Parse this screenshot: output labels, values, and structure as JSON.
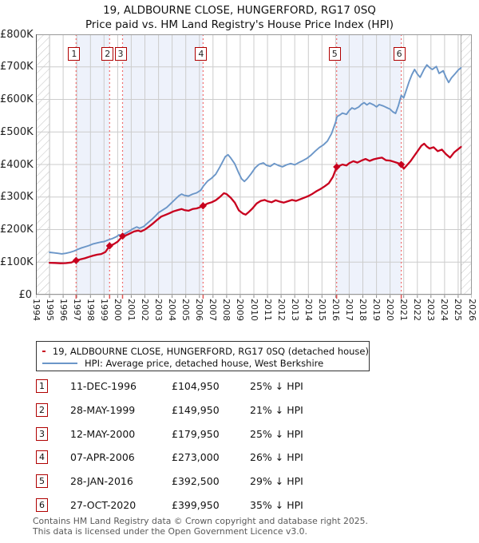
{
  "title": "19, ALDBOURNE CLOSE, HUNGERFORD, RG17 0SQ",
  "subtitle": "Price paid vs. HM Land Registry's House Price Index (HPI)",
  "legend": {
    "property_label": "19, ALDBOURNE CLOSE, HUNGERFORD, RG17 0SQ (detached house)",
    "hpi_label": "HPI: Average price, detached house, West Berkshire",
    "property_color": "#c8001e",
    "hpi_color": "#6b96c8"
  },
  "table": {
    "rows": [
      {
        "num": "1",
        "date": "11-DEC-1996",
        "price": "£104,950",
        "hpi": "25% ↓ HPI"
      },
      {
        "num": "2",
        "date": "28-MAY-1999",
        "price": "£149,950",
        "hpi": "21% ↓ HPI"
      },
      {
        "num": "3",
        "date": "12-MAY-2000",
        "price": "£179,950",
        "hpi": "25% ↓ HPI"
      },
      {
        "num": "4",
        "date": "07-APR-2006",
        "price": "£273,000",
        "hpi": "26% ↓ HPI"
      },
      {
        "num": "5",
        "date": "28-JAN-2016",
        "price": "£392,500",
        "hpi": "29% ↓ HPI"
      },
      {
        "num": "6",
        "date": "27-OCT-2020",
        "price": "£399,950",
        "hpi": "35% ↓ HPI"
      }
    ]
  },
  "footer": {
    "line1": "Contains HM Land Registry data © Crown copyright and database right 2025.",
    "line2": "This data is licensed under the Open Government Licence v3.0."
  },
  "chart_data": {
    "type": "line",
    "title": "19, ALDBOURNE CLOSE, HUNGERFORD, RG17 0SQ — Price paid vs. HPI",
    "x_range": [
      1994,
      2026
    ],
    "y_range": [
      0,
      800000
    ],
    "x_ticks": [
      1994,
      1995,
      1996,
      1997,
      1998,
      1999,
      2000,
      2001,
      2002,
      2003,
      2004,
      2005,
      2006,
      2007,
      2008,
      2009,
      2010,
      2011,
      2012,
      2013,
      2014,
      2015,
      2016,
      2017,
      2018,
      2019,
      2020,
      2021,
      2022,
      2023,
      2024,
      2025,
      2026
    ],
    "y_ticks": [
      0,
      100000,
      200000,
      300000,
      400000,
      500000,
      600000,
      700000,
      800000
    ],
    "y_tick_labels": [
      "£0",
      "£100K",
      "£200K",
      "£300K",
      "£400K",
      "£500K",
      "£600K",
      "£700K",
      "£800K"
    ],
    "grid": true,
    "legend_position": "below",
    "colors": {
      "band": "#eef2fb",
      "grid": "#cccccc",
      "border": "#999999",
      "sale_line": "#f26d6d",
      "hatch": "#c6c6c6"
    },
    "bands_between_sales": [
      [
        1996.95,
        1999.41
      ],
      [
        2000.36,
        2006.27
      ],
      [
        2016.08,
        2020.82
      ]
    ],
    "hatch_regions": [
      [
        1994,
        1995.0
      ],
      [
        2025.2,
        2026
      ]
    ],
    "sales": [
      {
        "n": 1,
        "year": 1996.95,
        "price": 104950,
        "date": "11-DEC-1996",
        "pct_vs_hpi": "25% below"
      },
      {
        "n": 2,
        "year": 1999.41,
        "price": 149950,
        "date": "28-MAY-1999",
        "pct_vs_hpi": "21% below"
      },
      {
        "n": 3,
        "year": 2000.36,
        "price": 179950,
        "date": "12-MAY-2000",
        "pct_vs_hpi": "25% below"
      },
      {
        "n": 4,
        "year": 2006.27,
        "price": 273000,
        "date": "07-APR-2006",
        "pct_vs_hpi": "26% below"
      },
      {
        "n": 5,
        "year": 2016.08,
        "price": 392500,
        "date": "28-JAN-2016",
        "pct_vs_hpi": "29% below"
      },
      {
        "n": 6,
        "year": 2020.82,
        "price": 399950,
        "date": "27-OCT-2020",
        "pct_vs_hpi": "35% below"
      }
    ],
    "series": [
      {
        "name": "HPI: Average price, detached house, West Berkshire",
        "color": "#6b96c8",
        "width": 1.9,
        "points": [
          [
            1995.0,
            130000
          ],
          [
            1995.3,
            128500
          ],
          [
            1995.6,
            127000
          ],
          [
            1995.9,
            125500
          ],
          [
            1996.2,
            127000
          ],
          [
            1996.5,
            130000
          ],
          [
            1996.8,
            134000
          ],
          [
            1997.0,
            138000
          ],
          [
            1997.3,
            143000
          ],
          [
            1997.6,
            147000
          ],
          [
            1997.9,
            151000
          ],
          [
            1998.2,
            156000
          ],
          [
            1998.5,
            159000
          ],
          [
            1998.8,
            162000
          ],
          [
            1999.0,
            163000
          ],
          [
            1999.3,
            168000
          ],
          [
            1999.6,
            172000
          ],
          [
            1999.9,
            178000
          ],
          [
            2000.1,
            184000
          ],
          [
            2000.3,
            182000
          ],
          [
            2000.6,
            189000
          ],
          [
            2000.9,
            196000
          ],
          [
            2001.1,
            202000
          ],
          [
            2001.4,
            208000
          ],
          [
            2001.6,
            204000
          ],
          [
            2001.9,
            209000
          ],
          [
            2002.2,
            220000
          ],
          [
            2002.5,
            231000
          ],
          [
            2002.8,
            243000
          ],
          [
            2003.0,
            252000
          ],
          [
            2003.3,
            260000
          ],
          [
            2003.6,
            268000
          ],
          [
            2003.9,
            280000
          ],
          [
            2004.2,
            292000
          ],
          [
            2004.5,
            304000
          ],
          [
            2004.7,
            309000
          ],
          [
            2004.9,
            305000
          ],
          [
            2005.2,
            303000
          ],
          [
            2005.5,
            309000
          ],
          [
            2005.8,
            313000
          ],
          [
            2006.1,
            321000
          ],
          [
            2006.3,
            334000
          ],
          [
            2006.6,
            349000
          ],
          [
            2006.9,
            358000
          ],
          [
            2007.2,
            370000
          ],
          [
            2007.5,
            392000
          ],
          [
            2007.7,
            408000
          ],
          [
            2007.9,
            424000
          ],
          [
            2008.1,
            430000
          ],
          [
            2008.3,
            420000
          ],
          [
            2008.6,
            402000
          ],
          [
            2008.9,
            373000
          ],
          [
            2009.1,
            356000
          ],
          [
            2009.3,
            348000
          ],
          [
            2009.5,
            356000
          ],
          [
            2009.8,
            372000
          ],
          [
            2010.1,
            390000
          ],
          [
            2010.4,
            401000
          ],
          [
            2010.7,
            405000
          ],
          [
            2010.9,
            398000
          ],
          [
            2011.2,
            394000
          ],
          [
            2011.5,
            403000
          ],
          [
            2011.8,
            397000
          ],
          [
            2012.1,
            393000
          ],
          [
            2012.4,
            399000
          ],
          [
            2012.7,
            403000
          ],
          [
            2013.0,
            399000
          ],
          [
            2013.3,
            406000
          ],
          [
            2013.6,
            412000
          ],
          [
            2013.9,
            419000
          ],
          [
            2014.2,
            429000
          ],
          [
            2014.5,
            441000
          ],
          [
            2014.8,
            452000
          ],
          [
            2015.1,
            460000
          ],
          [
            2015.4,
            472000
          ],
          [
            2015.7,
            495000
          ],
          [
            2016.0,
            530000
          ],
          [
            2016.1,
            547000
          ],
          [
            2016.3,
            552000
          ],
          [
            2016.5,
            558000
          ],
          [
            2016.8,
            554000
          ],
          [
            2017.0,
            566000
          ],
          [
            2017.2,
            574000
          ],
          [
            2017.4,
            570000
          ],
          [
            2017.7,
            577000
          ],
          [
            2017.9,
            585000
          ],
          [
            2018.1,
            590000
          ],
          [
            2018.3,
            583000
          ],
          [
            2018.5,
            589000
          ],
          [
            2018.8,
            583000
          ],
          [
            2019.0,
            577000
          ],
          [
            2019.2,
            584000
          ],
          [
            2019.5,
            580000
          ],
          [
            2019.8,
            574000
          ],
          [
            2020.0,
            570000
          ],
          [
            2020.2,
            562000
          ],
          [
            2020.4,
            557000
          ],
          [
            2020.6,
            580000
          ],
          [
            2020.82,
            612000
          ],
          [
            2021.0,
            605000
          ],
          [
            2021.2,
            630000
          ],
          [
            2021.4,
            655000
          ],
          [
            2021.6,
            676000
          ],
          [
            2021.8,
            692000
          ],
          [
            2022.0,
            678000
          ],
          [
            2022.2,
            668000
          ],
          [
            2022.5,
            693000
          ],
          [
            2022.7,
            706000
          ],
          [
            2022.9,
            698000
          ],
          [
            2023.1,
            692000
          ],
          [
            2023.4,
            701000
          ],
          [
            2023.6,
            680000
          ],
          [
            2023.9,
            688000
          ],
          [
            2024.1,
            668000
          ],
          [
            2024.3,
            652000
          ],
          [
            2024.5,
            666000
          ],
          [
            2024.8,
            680000
          ],
          [
            2025.0,
            690000
          ],
          [
            2025.2,
            697000
          ]
        ]
      },
      {
        "name": "19, ALDBOURNE CLOSE, HUNGERFORD, RG17 0SQ (detached house)",
        "color": "#c8001e",
        "width": 2.3,
        "points": [
          [
            1995.0,
            98000
          ],
          [
            1995.4,
            97500
          ],
          [
            1995.8,
            96500
          ],
          [
            1996.2,
            97000
          ],
          [
            1996.6,
            99000
          ],
          [
            1996.95,
            105000
          ],
          [
            1997.3,
            109000
          ],
          [
            1997.6,
            112000
          ],
          [
            1997.9,
            116000
          ],
          [
            1998.2,
            120000
          ],
          [
            1998.5,
            123000
          ],
          [
            1998.8,
            125000
          ],
          [
            1999.1,
            131000
          ],
          [
            1999.41,
            150000
          ],
          [
            1999.7,
            155000
          ],
          [
            2000.0,
            163000
          ],
          [
            2000.36,
            180000
          ],
          [
            2000.6,
            182000
          ],
          [
            2000.9,
            188000
          ],
          [
            2001.2,
            194000
          ],
          [
            2001.5,
            197000
          ],
          [
            2001.7,
            194000
          ],
          [
            2002.0,
            200000
          ],
          [
            2002.3,
            209000
          ],
          [
            2002.6,
            219000
          ],
          [
            2002.9,
            230000
          ],
          [
            2003.2,
            240000
          ],
          [
            2003.5,
            245000
          ],
          [
            2003.8,
            250000
          ],
          [
            2004.1,
            256000
          ],
          [
            2004.4,
            260000
          ],
          [
            2004.7,
            263000
          ],
          [
            2004.9,
            260000
          ],
          [
            2005.2,
            258000
          ],
          [
            2005.5,
            263000
          ],
          [
            2005.8,
            265000
          ],
          [
            2006.0,
            268000
          ],
          [
            2006.27,
            273000
          ],
          [
            2006.6,
            280000
          ],
          [
            2006.9,
            284000
          ],
          [
            2007.2,
            290000
          ],
          [
            2007.5,
            300000
          ],
          [
            2007.8,
            312000
          ],
          [
            2008.0,
            309000
          ],
          [
            2008.3,
            298000
          ],
          [
            2008.6,
            283000
          ],
          [
            2008.9,
            259000
          ],
          [
            2009.2,
            249000
          ],
          [
            2009.4,
            246000
          ],
          [
            2009.6,
            253000
          ],
          [
            2009.9,
            265000
          ],
          [
            2010.2,
            280000
          ],
          [
            2010.5,
            288000
          ],
          [
            2010.8,
            291000
          ],
          [
            2011.0,
            287000
          ],
          [
            2011.3,
            284000
          ],
          [
            2011.6,
            290000
          ],
          [
            2011.9,
            286000
          ],
          [
            2012.2,
            283000
          ],
          [
            2012.5,
            287000
          ],
          [
            2012.8,
            291000
          ],
          [
            2013.1,
            288000
          ],
          [
            2013.4,
            293000
          ],
          [
            2013.7,
            298000
          ],
          [
            2014.0,
            303000
          ],
          [
            2014.3,
            310000
          ],
          [
            2014.6,
            318000
          ],
          [
            2014.9,
            325000
          ],
          [
            2015.2,
            333000
          ],
          [
            2015.5,
            342000
          ],
          [
            2015.8,
            362000
          ],
          [
            2016.08,
            392500
          ],
          [
            2016.3,
            396000
          ],
          [
            2016.5,
            400000
          ],
          [
            2016.8,
            397000
          ],
          [
            2017.0,
            404000
          ],
          [
            2017.3,
            410000
          ],
          [
            2017.6,
            406000
          ],
          [
            2017.9,
            412000
          ],
          [
            2018.2,
            417000
          ],
          [
            2018.5,
            411000
          ],
          [
            2018.8,
            416000
          ],
          [
            2019.1,
            419000
          ],
          [
            2019.4,
            421000
          ],
          [
            2019.7,
            413000
          ],
          [
            2020.0,
            412000
          ],
          [
            2020.3,
            408000
          ],
          [
            2020.6,
            404000
          ],
          [
            2020.82,
            399950
          ],
          [
            2021.0,
            387000
          ],
          [
            2021.2,
            396000
          ],
          [
            2021.5,
            410000
          ],
          [
            2021.8,
            428000
          ],
          [
            2022.0,
            440000
          ],
          [
            2022.3,
            458000
          ],
          [
            2022.5,
            464000
          ],
          [
            2022.7,
            455000
          ],
          [
            2022.9,
            449000
          ],
          [
            2023.2,
            453000
          ],
          [
            2023.5,
            441000
          ],
          [
            2023.8,
            446000
          ],
          [
            2024.1,
            432000
          ],
          [
            2024.4,
            421000
          ],
          [
            2024.7,
            437000
          ],
          [
            2025.0,
            447000
          ],
          [
            2025.2,
            454000
          ]
        ]
      }
    ]
  }
}
